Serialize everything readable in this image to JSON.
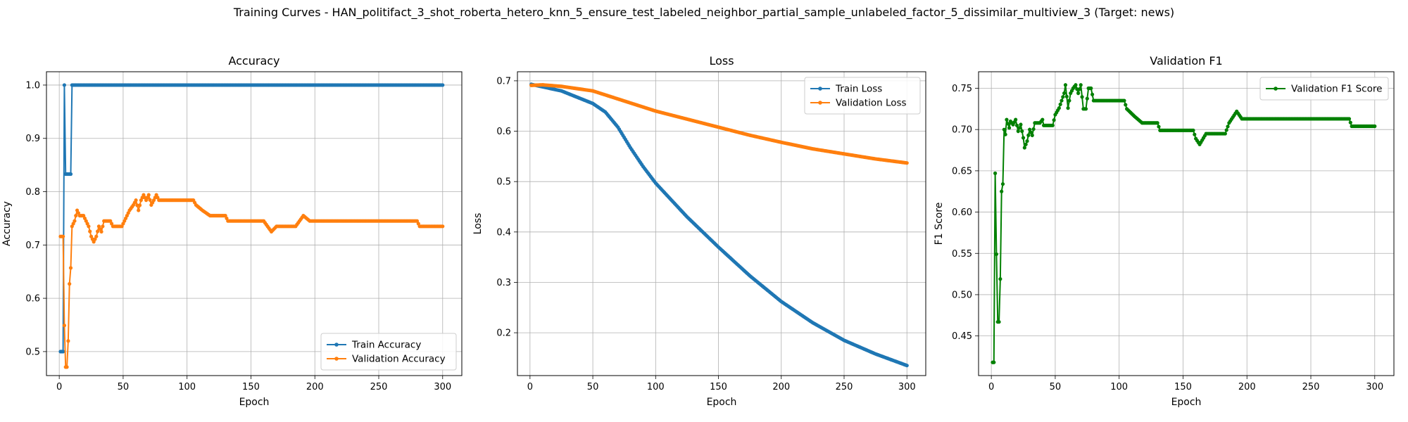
{
  "figure": {
    "title": "Training Curves - HAN_politifact_3_shot_roberta_hetero_knn_5_ensure_test_labeled_neighbor_partial_sample_unlabeled_factor_5_dissimilar_multiview_3 (Target: news)"
  },
  "chart_data": [
    {
      "type": "line",
      "title": "Accuracy",
      "xlabel": "Epoch",
      "ylabel": "Accuracy",
      "xlim": [
        -10,
        315
      ],
      "ylim": [
        0.455,
        1.025
      ],
      "xticks": [
        0,
        50,
        100,
        150,
        200,
        250,
        300
      ],
      "yticks": [
        0.5,
        0.6,
        0.7,
        0.8,
        0.9,
        1.0
      ],
      "grid": true,
      "legend_position": "lower-right",
      "series": [
        {
          "name": "Train Accuracy",
          "color": "#1f77b4",
          "points": [
            [
              1,
              0.5
            ],
            [
              2,
              0.5
            ],
            [
              3,
              0.5
            ],
            [
              4,
              1.0
            ],
            [
              5,
              0.833
            ],
            [
              6,
              0.833
            ],
            [
              7,
              0.833
            ],
            [
              8,
              0.833
            ],
            [
              9,
              0.833
            ],
            [
              10,
              1.0
            ],
            [
              300,
              1.0
            ]
          ]
        },
        {
          "name": "Validation Accuracy",
          "color": "#ff7f0e",
          "points": [
            [
              1,
              0.716
            ],
            [
              2,
              0.716
            ],
            [
              3,
              0.716
            ],
            [
              4,
              0.549
            ],
            [
              5,
              0.471
            ],
            [
              6,
              0.471
            ],
            [
              7,
              0.52
            ],
            [
              8,
              0.627
            ],
            [
              9,
              0.657
            ],
            [
              10,
              0.735
            ],
            [
              12,
              0.745
            ],
            [
              14,
              0.765
            ],
            [
              16,
              0.755
            ],
            [
              19,
              0.755
            ],
            [
              21,
              0.745
            ],
            [
              23,
              0.735
            ],
            [
              25,
              0.716
            ],
            [
              27,
              0.706
            ],
            [
              29,
              0.716
            ],
            [
              31,
              0.735
            ],
            [
              33,
              0.725
            ],
            [
              35,
              0.745
            ],
            [
              40,
              0.745
            ],
            [
              42,
              0.735
            ],
            [
              49,
              0.735
            ],
            [
              51,
              0.745
            ],
            [
              55,
              0.765
            ],
            [
              58,
              0.775
            ],
            [
              60,
              0.784
            ],
            [
              62,
              0.765
            ],
            [
              64,
              0.784
            ],
            [
              66,
              0.794
            ],
            [
              68,
              0.784
            ],
            [
              70,
              0.794
            ],
            [
              72,
              0.775
            ],
            [
              74,
              0.784
            ],
            [
              76,
              0.794
            ],
            [
              78,
              0.784
            ],
            [
              105,
              0.784
            ],
            [
              107,
              0.775
            ],
            [
              112,
              0.765
            ],
            [
              118,
              0.755
            ],
            [
              130,
              0.755
            ],
            [
              132,
              0.745
            ],
            [
              160,
              0.745
            ],
            [
              163,
              0.735
            ],
            [
              166,
              0.725
            ],
            [
              170,
              0.735
            ],
            [
              185,
              0.735
            ],
            [
              188,
              0.745
            ],
            [
              191,
              0.755
            ],
            [
              196,
              0.745
            ],
            [
              280,
              0.745
            ],
            [
              282,
              0.735
            ],
            [
              300,
              0.735
            ]
          ]
        }
      ]
    },
    {
      "type": "line",
      "title": "Loss",
      "xlabel": "Epoch",
      "ylabel": "Loss",
      "xlim": [
        -10,
        315
      ],
      "ylim": [
        0.115,
        0.718
      ],
      "xticks": [
        0,
        50,
        100,
        150,
        200,
        250,
        300
      ],
      "yticks": [
        0.2,
        0.3,
        0.4,
        0.5,
        0.6,
        0.7
      ],
      "grid": true,
      "legend_position": "upper-right",
      "series": [
        {
          "name": "Train Loss",
          "color": "#1f77b4",
          "points": [
            [
              1,
              0.693
            ],
            [
              25,
              0.68
            ],
            [
              50,
              0.655
            ],
            [
              60,
              0.638
            ],
            [
              70,
              0.608
            ],
            [
              80,
              0.567
            ],
            [
              90,
              0.53
            ],
            [
              100,
              0.497
            ],
            [
              125,
              0.43
            ],
            [
              150,
              0.37
            ],
            [
              175,
              0.313
            ],
            [
              200,
              0.262
            ],
            [
              225,
              0.22
            ],
            [
              250,
              0.185
            ],
            [
              275,
              0.158
            ],
            [
              300,
              0.135
            ]
          ]
        },
        {
          "name": "Validation Loss",
          "color": "#ff7f0e",
          "points": [
            [
              1,
              0.691
            ],
            [
              10,
              0.692
            ],
            [
              25,
              0.689
            ],
            [
              50,
              0.68
            ],
            [
              75,
              0.66
            ],
            [
              100,
              0.64
            ],
            [
              125,
              0.624
            ],
            [
              150,
              0.608
            ],
            [
              175,
              0.592
            ],
            [
              200,
              0.578
            ],
            [
              225,
              0.565
            ],
            [
              250,
              0.555
            ],
            [
              275,
              0.545
            ],
            [
              300,
              0.537
            ]
          ]
        }
      ]
    },
    {
      "type": "line",
      "title": "Validation F1",
      "xlabel": "Epoch",
      "ylabel": "F1 Score",
      "xlim": [
        -10,
        315
      ],
      "ylim": [
        0.402,
        0.77
      ],
      "xticks": [
        0,
        50,
        100,
        150,
        200,
        250,
        300
      ],
      "yticks": [
        0.45,
        0.5,
        0.55,
        0.6,
        0.65,
        0.7,
        0.75
      ],
      "grid": true,
      "legend_position": "upper-right",
      "series": [
        {
          "name": "Validation F1 Score",
          "color": "#008000",
          "points": [
            [
              1,
              0.418
            ],
            [
              2,
              0.418
            ],
            [
              3,
              0.647
            ],
            [
              4,
              0.549
            ],
            [
              5,
              0.467
            ],
            [
              6,
              0.467
            ],
            [
              7,
              0.519
            ],
            [
              8,
              0.625
            ],
            [
              9,
              0.634
            ],
            [
              10,
              0.7
            ],
            [
              11,
              0.694
            ],
            [
              12,
              0.712
            ],
            [
              14,
              0.702
            ],
            [
              15,
              0.71
            ],
            [
              17,
              0.706
            ],
            [
              19,
              0.712
            ],
            [
              21,
              0.698
            ],
            [
              23,
              0.706
            ],
            [
              25,
              0.69
            ],
            [
              26,
              0.678
            ],
            [
              28,
              0.686
            ],
            [
              30,
              0.7
            ],
            [
              32,
              0.693
            ],
            [
              34,
              0.708
            ],
            [
              38,
              0.708
            ],
            [
              40,
              0.712
            ],
            [
              41,
              0.705
            ],
            [
              48,
              0.705
            ],
            [
              50,
              0.718
            ],
            [
              53,
              0.726
            ],
            [
              55,
              0.735
            ],
            [
              57,
              0.744
            ],
            [
              58,
              0.754
            ],
            [
              60,
              0.726
            ],
            [
              62,
              0.744
            ],
            [
              64,
              0.75
            ],
            [
              66,
              0.754
            ],
            [
              68,
              0.744
            ],
            [
              70,
              0.754
            ],
            [
              72,
              0.725
            ],
            [
              74,
              0.725
            ],
            [
              76,
              0.75
            ],
            [
              78,
              0.75
            ],
            [
              80,
              0.735
            ],
            [
              104,
              0.735
            ],
            [
              106,
              0.725
            ],
            [
              112,
              0.716
            ],
            [
              118,
              0.708
            ],
            [
              130,
              0.708
            ],
            [
              132,
              0.699
            ],
            [
              158,
              0.699
            ],
            [
              160,
              0.689
            ],
            [
              163,
              0.682
            ],
            [
              168,
              0.695
            ],
            [
              183,
              0.695
            ],
            [
              186,
              0.708
            ],
            [
              192,
              0.722
            ],
            [
              196,
              0.713
            ],
            [
              280,
              0.713
            ],
            [
              282,
              0.704
            ],
            [
              300,
              0.704
            ]
          ]
        }
      ]
    }
  ]
}
